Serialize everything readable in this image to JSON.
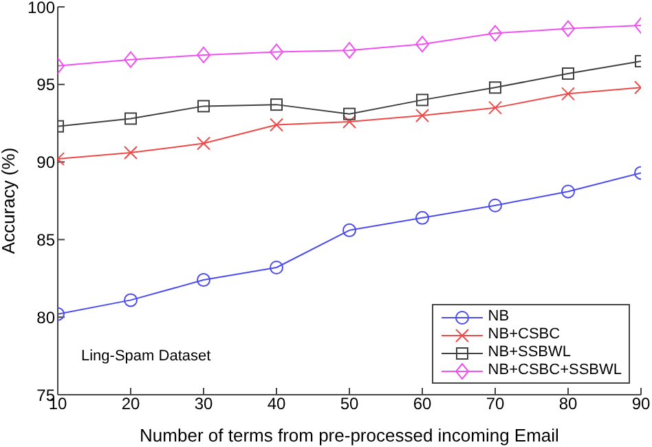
{
  "chart_data": {
    "type": "line",
    "xlabel": "Number of terms from pre-processed incoming Email",
    "ylabel": "Accuracy (%)",
    "x": [
      10,
      20,
      30,
      40,
      50,
      60,
      70,
      80,
      90
    ],
    "xlim": [
      10,
      90
    ],
    "xticks": [
      10,
      20,
      30,
      40,
      50,
      60,
      70,
      80,
      90
    ],
    "ylim": [
      75,
      100
    ],
    "yticks": [
      75,
      80,
      85,
      90,
      95,
      100
    ],
    "grid": false,
    "legend": "bottom right",
    "annotations": [
      "Ling-Spam Dataset"
    ],
    "series": [
      {
        "name": "NB",
        "color": "#4b4bef",
        "marker": "circle",
        "values": [
          80.2,
          81.1,
          82.4,
          83.2,
          85.6,
          86.4,
          87.2,
          88.1,
          89.3
        ]
      },
      {
        "name": "NB+CSBC",
        "color": "#f04848",
        "marker": "cross",
        "values": [
          90.2,
          90.6,
          91.2,
          92.4,
          92.6,
          93.0,
          93.5,
          94.4,
          94.8
        ]
      },
      {
        "name": "NB+SSBWL",
        "color": "#404040",
        "marker": "square",
        "values": [
          92.3,
          92.8,
          93.6,
          93.7,
          93.1,
          94.0,
          94.8,
          95.7,
          96.5
        ]
      },
      {
        "name": "NB+CSBC+SSBWL",
        "color": "#f050f0",
        "marker": "diamond",
        "values": [
          96.2,
          96.6,
          96.9,
          97.1,
          97.2,
          97.6,
          98.3,
          98.6,
          98.8
        ]
      }
    ]
  }
}
